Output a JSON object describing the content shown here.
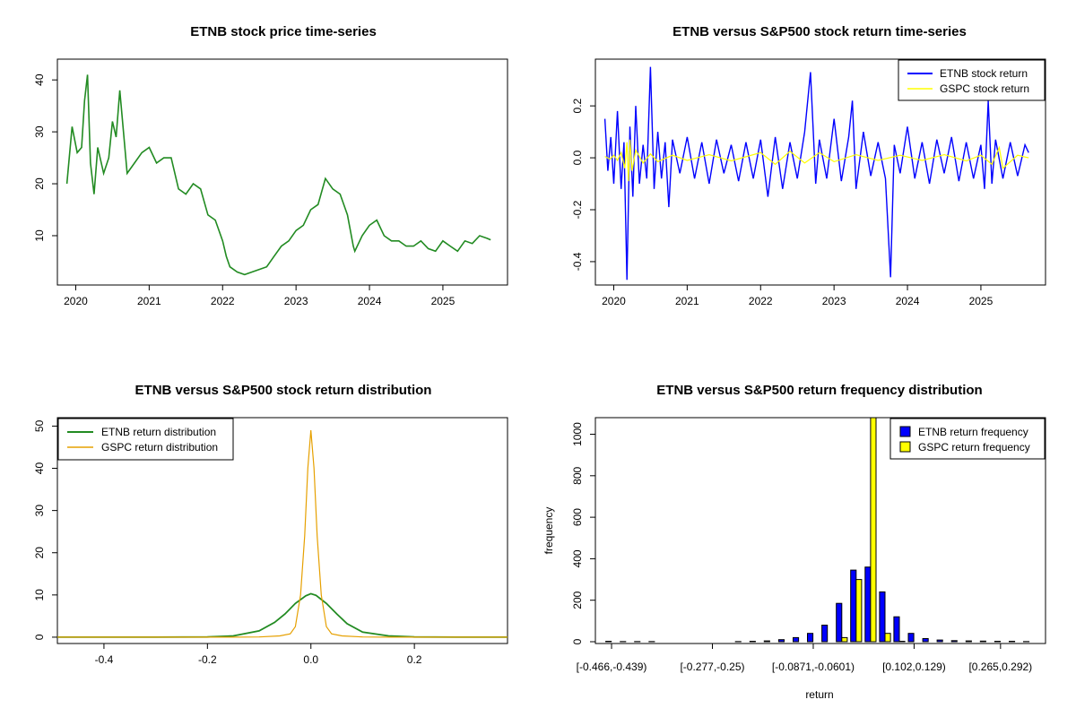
{
  "chart_data": [
    {
      "id": "price",
      "type": "line",
      "title": "ETNB stock price time-series",
      "xlabel": "",
      "ylabel": "",
      "x_ticks": [
        "2020",
        "2021",
        "2022",
        "2023",
        "2024",
        "2025"
      ],
      "x_tick_values": [
        2020.0,
        2021.0,
        2022.0,
        2023.0,
        2024.0,
        2025.0
      ],
      "xlim": [
        2019.75,
        2025.88
      ],
      "y_ticks": [
        10,
        20,
        30,
        40
      ],
      "ylim": [
        0.5,
        44
      ],
      "grid": false,
      "color": "#228B22",
      "series": [
        {
          "x": [
            2019.88,
            2019.95,
            2020.02,
            2020.08,
            2020.12,
            2020.16,
            2020.2,
            2020.25,
            2020.3,
            2020.38,
            2020.45,
            2020.5,
            2020.55,
            2020.6,
            2020.65,
            2020.7,
            2020.8,
            2020.9,
            2021.0,
            2021.1,
            2021.2,
            2021.3,
            2021.4,
            2021.5,
            2021.6,
            2021.7,
            2021.8,
            2021.9,
            2022.0,
            2022.05,
            2022.1,
            2022.2,
            2022.3,
            2022.4,
            2022.5,
            2022.6,
            2022.7,
            2022.8,
            2022.9,
            2023.0,
            2023.1,
            2023.2,
            2023.3,
            2023.4,
            2023.5,
            2023.6,
            2023.7,
            2023.78,
            2023.8,
            2023.9,
            2024.0,
            2024.1,
            2024.2,
            2024.3,
            2024.4,
            2024.5,
            2024.6,
            2024.7,
            2024.8,
            2024.9,
            2025.0,
            2025.1,
            2025.2,
            2025.3,
            2025.4,
            2025.5,
            2025.6,
            2025.65
          ],
          "y": [
            20,
            31,
            26,
            27,
            36,
            41,
            24,
            18,
            27,
            22,
            25,
            32,
            29,
            38,
            30,
            22,
            24,
            26,
            27,
            24,
            25,
            25,
            19,
            18,
            20,
            19,
            14,
            13,
            9,
            6,
            4,
            3,
            2.5,
            3,
            3.5,
            4,
            6,
            8,
            9,
            11,
            12,
            15,
            16,
            21,
            19,
            18,
            14,
            8,
            7,
            10,
            12,
            13,
            10,
            9,
            9,
            8,
            8,
            9,
            7.5,
            7,
            9,
            8,
            7,
            9,
            8.5,
            10,
            9.5,
            9.2
          ]
        }
      ]
    },
    {
      "id": "returns",
      "type": "line",
      "title": "ETNB versus S&P500 stock return time-series",
      "xlabel": "",
      "ylabel": "",
      "x_ticks": [
        "2020",
        "2021",
        "2022",
        "2023",
        "2024",
        "2025"
      ],
      "x_tick_values": [
        2020.0,
        2021.0,
        2022.0,
        2023.0,
        2024.0,
        2025.0
      ],
      "xlim": [
        2019.75,
        2025.88
      ],
      "y_ticks": [
        "-0.4",
        "-0.2",
        "0.0",
        "0.2"
      ],
      "y_tick_values": [
        -0.4,
        -0.2,
        0.0,
        0.2
      ],
      "ylim": [
        -0.49,
        0.38
      ],
      "legend_position": "top-right",
      "series": [
        {
          "name": "ETNB stock return",
          "color": "#0000FF",
          "x": [
            2019.88,
            2019.92,
            2019.96,
            2020.0,
            2020.05,
            2020.1,
            2020.14,
            2020.18,
            2020.22,
            2020.26,
            2020.3,
            2020.35,
            2020.4,
            2020.45,
            2020.5,
            2020.55,
            2020.6,
            2020.65,
            2020.7,
            2020.75,
            2020.8,
            2020.9,
            2021.0,
            2021.1,
            2021.2,
            2021.3,
            2021.4,
            2021.5,
            2021.6,
            2021.7,
            2021.8,
            2021.9,
            2022.0,
            2022.1,
            2022.2,
            2022.3,
            2022.4,
            2022.5,
            2022.6,
            2022.68,
            2022.75,
            2022.8,
            2022.9,
            2023.0,
            2023.1,
            2023.2,
            2023.25,
            2023.3,
            2023.4,
            2023.5,
            2023.6,
            2023.7,
            2023.77,
            2023.82,
            2023.9,
            2024.0,
            2024.1,
            2024.2,
            2024.3,
            2024.4,
            2024.5,
            2024.6,
            2024.7,
            2024.8,
            2024.9,
            2025.0,
            2025.05,
            2025.1,
            2025.15,
            2025.2,
            2025.3,
            2025.4,
            2025.5,
            2025.6,
            2025.65
          ],
          "y": [
            0.15,
            -0.05,
            0.08,
            -0.1,
            0.18,
            -0.12,
            0.06,
            -0.47,
            0.12,
            -0.15,
            0.2,
            -0.1,
            0.05,
            -0.08,
            0.35,
            -0.12,
            0.1,
            -0.08,
            0.06,
            -0.19,
            0.07,
            -0.06,
            0.08,
            -0.08,
            0.06,
            -0.1,
            0.07,
            -0.06,
            0.05,
            -0.09,
            0.06,
            -0.08,
            0.07,
            -0.15,
            0.08,
            -0.12,
            0.06,
            -0.08,
            0.1,
            0.33,
            -0.1,
            0.07,
            -0.08,
            0.15,
            -0.09,
            0.08,
            0.22,
            -0.12,
            0.1,
            -0.07,
            0.06,
            -0.08,
            -0.46,
            0.05,
            -0.06,
            0.12,
            -0.08,
            0.06,
            -0.1,
            0.07,
            -0.06,
            0.08,
            -0.09,
            0.06,
            -0.08,
            0.05,
            -0.12,
            0.22,
            -0.1,
            0.07,
            -0.08,
            0.06,
            -0.07,
            0.05,
            0.02
          ]
        },
        {
          "name": "GSPC stock return",
          "color": "#FFFF00",
          "x": [
            2019.88,
            2019.95,
            2020.0,
            2020.05,
            2020.1,
            2020.15,
            2020.18,
            2020.2,
            2020.22,
            2020.25,
            2020.3,
            2020.4,
            2020.5,
            2020.6,
            2020.8,
            2021.0,
            2021.3,
            2021.6,
            2022.0,
            2022.2,
            2022.4,
            2022.6,
            2022.8,
            2023.0,
            2023.3,
            2023.6,
            2023.9,
            2024.2,
            2024.5,
            2024.8,
            2025.0,
            2025.15,
            2025.25,
            2025.3,
            2025.5,
            2025.65
          ],
          "y": [
            0.005,
            -0.005,
            0.01,
            -0.01,
            0.02,
            -0.04,
            0.06,
            -0.09,
            0.07,
            -0.05,
            0.03,
            -0.02,
            0.015,
            -0.015,
            0.01,
            -0.01,
            0.012,
            -0.012,
            0.02,
            -0.025,
            0.025,
            -0.02,
            0.02,
            -0.015,
            0.012,
            -0.01,
            0.01,
            -0.01,
            0.012,
            -0.012,
            0.01,
            -0.025,
            0.04,
            -0.04,
            0.01,
            0.0
          ]
        }
      ]
    },
    {
      "id": "density",
      "type": "line",
      "title": "ETNB versus S&P500 stock return distribution",
      "xlabel": "",
      "ylabel": "",
      "x_ticks": [
        "-0.4",
        "-0.2",
        "0.0",
        "0.2"
      ],
      "x_tick_values": [
        -0.4,
        -0.2,
        0.0,
        0.2
      ],
      "xlim": [
        -0.49,
        0.38
      ],
      "y_ticks": [
        0,
        10,
        20,
        30,
        40,
        50
      ],
      "ylim": [
        -1.5,
        52
      ],
      "legend_position": "top-left",
      "series": [
        {
          "name": "ETNB return distribution",
          "color": "#228B22",
          "x": [
            -0.49,
            -0.3,
            -0.2,
            -0.15,
            -0.1,
            -0.07,
            -0.05,
            -0.03,
            -0.01,
            0.0,
            0.01,
            0.03,
            0.05,
            0.07,
            0.1,
            0.15,
            0.2,
            0.3,
            0.38
          ],
          "y": [
            0,
            0,
            0.05,
            0.3,
            1.5,
            3.5,
            5.5,
            8,
            9.8,
            10.3,
            9.9,
            8,
            5.5,
            3.2,
            1.2,
            0.3,
            0.05,
            0,
            0
          ]
        },
        {
          "name": "GSPC return distribution",
          "color": "#E6A000",
          "x": [
            -0.49,
            -0.15,
            -0.1,
            -0.06,
            -0.04,
            -0.03,
            -0.02,
            -0.012,
            -0.006,
            0.0,
            0.006,
            0.012,
            0.02,
            0.03,
            0.04,
            0.06,
            0.1,
            0.15,
            0.38
          ],
          "y": [
            0,
            0,
            0.05,
            0.3,
            0.8,
            2.5,
            10,
            24,
            40,
            49,
            40,
            24,
            10,
            2.5,
            0.8,
            0.3,
            0.05,
            0,
            0
          ]
        }
      ]
    },
    {
      "id": "frequency",
      "type": "bar",
      "title": "ETNB versus S&P500 return frequency distribution",
      "xlabel": "return",
      "ylabel": "frequency",
      "x_tick_labels": [
        "[-0.466,-0.439)",
        "[-0.277,-0.25)",
        "[-0.0871,-0.0601)",
        "[0.102,0.129)",
        "[0.265,0.292)"
      ],
      "x_tick_positions": [
        0,
        7,
        14,
        21,
        27
      ],
      "y_ticks": [
        0,
        200,
        400,
        600,
        800,
        1000
      ],
      "ylim": [
        0,
        1080
      ],
      "legend_position": "top-right",
      "bin_count": 30,
      "series": [
        {
          "name": "ETNB return frequency",
          "color": "#0000FF",
          "values": [
            2,
            1,
            1,
            1,
            0,
            0,
            0,
            0,
            0,
            1,
            2,
            4,
            10,
            20,
            40,
            80,
            185,
            345,
            360,
            240,
            120,
            40,
            15,
            8,
            5,
            4,
            3,
            2,
            2,
            1
          ]
        },
        {
          "name": "GSPC return frequency",
          "color": "#FFFF00",
          "values": [
            0,
            0,
            0,
            0,
            0,
            0,
            0,
            0,
            0,
            0,
            0,
            0,
            0,
            0,
            0,
            0,
            20,
            300,
            1080,
            40,
            2,
            0,
            0,
            0,
            0,
            0,
            0,
            0,
            0,
            0
          ]
        }
      ]
    }
  ]
}
